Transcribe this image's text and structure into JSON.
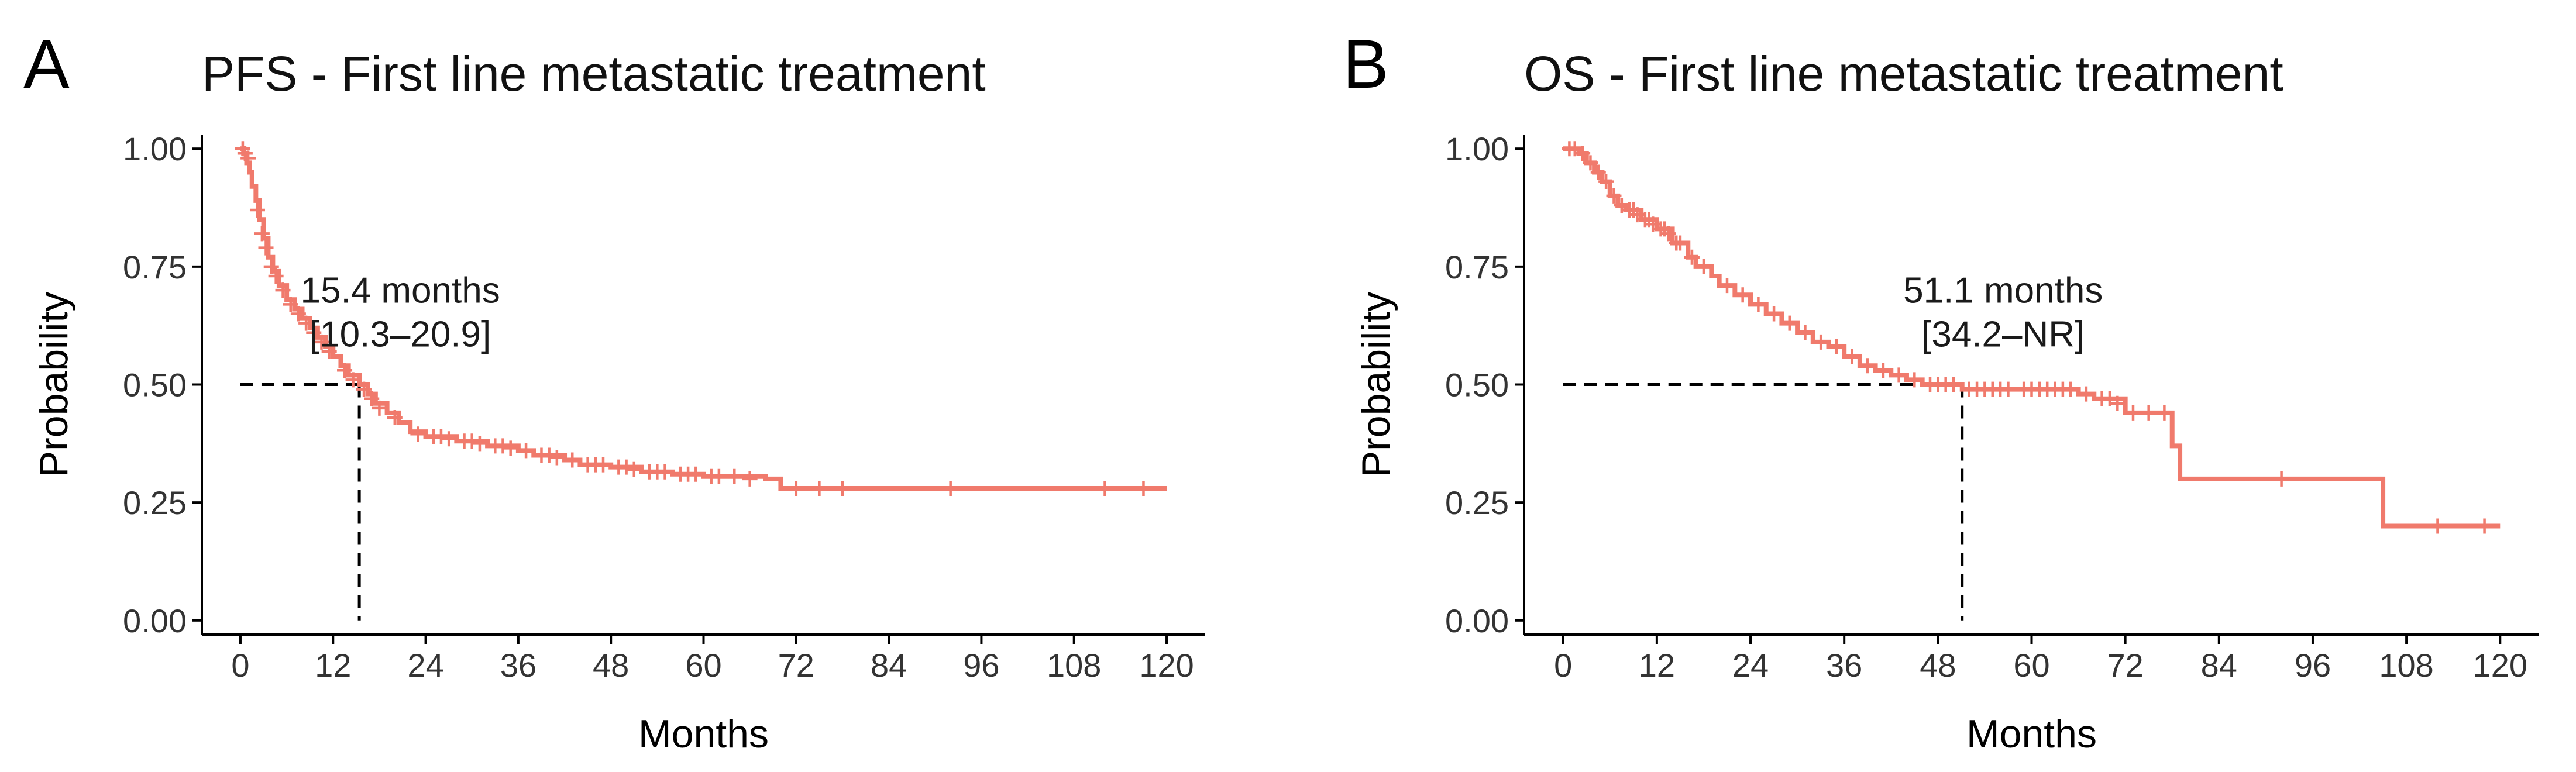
{
  "chart_data": [
    {
      "type": "line",
      "subtype": "kaplan-meier",
      "panel": "A",
      "title": "PFS - First line metastatic treatment",
      "xlabel": "Months",
      "ylabel": "Probability",
      "xlim": [
        -5,
        125
      ],
      "ylim": [
        -0.03,
        1.03
      ],
      "xticks": [
        0,
        12,
        24,
        36,
        48,
        60,
        72,
        84,
        96,
        108,
        120
      ],
      "yticks": [
        0.0,
        0.25,
        0.5,
        0.75,
        1.0
      ],
      "ytick_labels": [
        "0.00",
        "0.25",
        "0.50",
        "0.75",
        "1.00"
      ],
      "color": "#F07A6C",
      "median": {
        "x": 15.4,
        "y": 0.5
      },
      "median_label": "15.4 months",
      "ci_label": "[10.3–20.9]",
      "series": [
        {
          "name": "PFS",
          "steps": [
            [
              0,
              1.0
            ],
            [
              0.4,
              0.99
            ],
            [
              0.8,
              0.97
            ],
            [
              1.2,
              0.95
            ],
            [
              1.5,
              0.92
            ],
            [
              2,
              0.89
            ],
            [
              2.5,
              0.85
            ],
            [
              3,
              0.81
            ],
            [
              3.6,
              0.77
            ],
            [
              4.2,
              0.74
            ],
            [
              5,
              0.71
            ],
            [
              6,
              0.68
            ],
            [
              7,
              0.66
            ],
            [
              8,
              0.64
            ],
            [
              9,
              0.62
            ],
            [
              10,
              0.6
            ],
            [
              11,
              0.58
            ],
            [
              12,
              0.56
            ],
            [
              13,
              0.54
            ],
            [
              14,
              0.52
            ],
            [
              15.4,
              0.5
            ],
            [
              16.5,
              0.48
            ],
            [
              17.5,
              0.46
            ],
            [
              19,
              0.44
            ],
            [
              20.5,
              0.42
            ],
            [
              22,
              0.4
            ],
            [
              24,
              0.39
            ],
            [
              28,
              0.38
            ],
            [
              32,
              0.37
            ],
            [
              36,
              0.36
            ],
            [
              38,
              0.35
            ],
            [
              42,
              0.34
            ],
            [
              44,
              0.33
            ],
            [
              48,
              0.325
            ],
            [
              52,
              0.315
            ],
            [
              56,
              0.31
            ],
            [
              60,
              0.305
            ],
            [
              68,
              0.3
            ],
            [
              70,
              0.28
            ],
            [
              120,
              0.28
            ]
          ],
          "censored": [
            [
              0.3,
              1.0
            ],
            [
              0.6,
              0.99
            ],
            [
              1.0,
              0.98
            ],
            [
              2.2,
              0.87
            ],
            [
              2.8,
              0.82
            ],
            [
              3.3,
              0.79
            ],
            [
              4,
              0.75
            ],
            [
              4.6,
              0.73
            ],
            [
              5.5,
              0.7
            ],
            [
              6.5,
              0.67
            ],
            [
              7.5,
              0.65
            ],
            [
              8.5,
              0.63
            ],
            [
              9.5,
              0.61
            ],
            [
              10.5,
              0.59
            ],
            [
              11.5,
              0.57
            ],
            [
              13.5,
              0.53
            ],
            [
              14.6,
              0.51
            ],
            [
              16,
              0.49
            ],
            [
              17,
              0.47
            ],
            [
              18,
              0.45
            ],
            [
              20,
              0.43
            ],
            [
              23,
              0.395
            ],
            [
              25,
              0.39
            ],
            [
              26,
              0.39
            ],
            [
              27,
              0.385
            ],
            [
              29,
              0.38
            ],
            [
              30,
              0.38
            ],
            [
              31,
              0.375
            ],
            [
              33,
              0.37
            ],
            [
              34,
              0.37
            ],
            [
              35,
              0.365
            ],
            [
              37,
              0.36
            ],
            [
              39,
              0.35
            ],
            [
              40,
              0.35
            ],
            [
              41,
              0.345
            ],
            [
              43,
              0.34
            ],
            [
              45,
              0.33
            ],
            [
              46,
              0.33
            ],
            [
              47,
              0.33
            ],
            [
              49,
              0.325
            ],
            [
              50,
              0.325
            ],
            [
              51,
              0.32
            ],
            [
              53,
              0.315
            ],
            [
              54,
              0.315
            ],
            [
              55,
              0.315
            ],
            [
              57,
              0.31
            ],
            [
              58,
              0.31
            ],
            [
              59,
              0.31
            ],
            [
              61,
              0.305
            ],
            [
              62,
              0.305
            ],
            [
              64,
              0.305
            ],
            [
              66,
              0.3
            ],
            [
              72,
              0.28
            ],
            [
              75,
              0.28
            ],
            [
              78,
              0.28
            ],
            [
              92,
              0.28
            ],
            [
              112,
              0.28
            ],
            [
              117,
              0.28
            ]
          ]
        }
      ]
    },
    {
      "type": "line",
      "subtype": "kaplan-meier",
      "panel": "B",
      "title": "OS - First line metastatic treatment",
      "xlabel": "Months",
      "ylabel": "Probability",
      "xlim": [
        -5,
        125
      ],
      "ylim": [
        -0.03,
        1.03
      ],
      "xticks": [
        0,
        12,
        24,
        36,
        48,
        60,
        72,
        84,
        96,
        108,
        120
      ],
      "yticks": [
        0.0,
        0.25,
        0.5,
        0.75,
        1.0
      ],
      "ytick_labels": [
        "0.00",
        "0.25",
        "0.50",
        "0.75",
        "1.00"
      ],
      "color": "#F07A6C",
      "median": {
        "x": 51.1,
        "y": 0.5
      },
      "median_label": "51.1 months",
      "ci_label": "[34.2–NR]",
      "series": [
        {
          "name": "OS",
          "steps": [
            [
              0,
              1.0
            ],
            [
              2,
              0.99
            ],
            [
              3,
              0.97
            ],
            [
              4,
              0.95
            ],
            [
              5,
              0.93
            ],
            [
              6,
              0.9
            ],
            [
              7,
              0.88
            ],
            [
              8,
              0.87
            ],
            [
              10,
              0.85
            ],
            [
              12,
              0.83
            ],
            [
              14,
              0.8
            ],
            [
              16,
              0.77
            ],
            [
              17,
              0.75
            ],
            [
              19,
              0.73
            ],
            [
              20,
              0.71
            ],
            [
              22,
              0.69
            ],
            [
              24,
              0.67
            ],
            [
              26,
              0.65
            ],
            [
              28,
              0.63
            ],
            [
              30,
              0.61
            ],
            [
              32,
              0.59
            ],
            [
              34,
              0.58
            ],
            [
              36,
              0.56
            ],
            [
              38,
              0.54
            ],
            [
              40,
              0.53
            ],
            [
              42,
              0.52
            ],
            [
              44,
              0.51
            ],
            [
              46,
              0.5
            ],
            [
              51.1,
              0.49
            ],
            [
              66,
              0.48
            ],
            [
              68,
              0.47
            ],
            [
              72,
              0.44
            ],
            [
              76,
              0.44
            ],
            [
              78,
              0.37
            ],
            [
              79,
              0.3
            ],
            [
              105,
              0.3
            ],
            [
              105,
              0.2
            ],
            [
              120,
              0.2
            ]
          ],
          "censored": [
            [
              0.8,
              1.0
            ],
            [
              1.5,
              1.0
            ],
            [
              2.5,
              0.99
            ],
            [
              3.5,
              0.97
            ],
            [
              4.5,
              0.95
            ],
            [
              5.5,
              0.93
            ],
            [
              6.5,
              0.9
            ],
            [
              7.5,
              0.88
            ],
            [
              8.5,
              0.87
            ],
            [
              9,
              0.87
            ],
            [
              9.5,
              0.86
            ],
            [
              10.5,
              0.85
            ],
            [
              11,
              0.85
            ],
            [
              11.5,
              0.84
            ],
            [
              12.5,
              0.83
            ],
            [
              13,
              0.83
            ],
            [
              13.5,
              0.82
            ],
            [
              14.5,
              0.8
            ],
            [
              15,
              0.8
            ],
            [
              16.5,
              0.77
            ],
            [
              18,
              0.75
            ],
            [
              21,
              0.71
            ],
            [
              23,
              0.69
            ],
            [
              25,
              0.67
            ],
            [
              27,
              0.65
            ],
            [
              29,
              0.63
            ],
            [
              31,
              0.61
            ],
            [
              33,
              0.59
            ],
            [
              35,
              0.58
            ],
            [
              37,
              0.56
            ],
            [
              39,
              0.54
            ],
            [
              41,
              0.53
            ],
            [
              43,
              0.52
            ],
            [
              45,
              0.51
            ],
            [
              47,
              0.5
            ],
            [
              48,
              0.5
            ],
            [
              49,
              0.5
            ],
            [
              50,
              0.5
            ],
            [
              52,
              0.49
            ],
            [
              53,
              0.49
            ],
            [
              54,
              0.49
            ],
            [
              55,
              0.49
            ],
            [
              56,
              0.49
            ],
            [
              57,
              0.49
            ],
            [
              59,
              0.49
            ],
            [
              60,
              0.49
            ],
            [
              61,
              0.49
            ],
            [
              62,
              0.49
            ],
            [
              63,
              0.49
            ],
            [
              64,
              0.49
            ],
            [
              65,
              0.49
            ],
            [
              67,
              0.48
            ],
            [
              69,
              0.47
            ],
            [
              70,
              0.47
            ],
            [
              71,
              0.46
            ],
            [
              73,
              0.44
            ],
            [
              75,
              0.44
            ],
            [
              77,
              0.44
            ],
            [
              92,
              0.3
            ],
            [
              112,
              0.2
            ],
            [
              118,
              0.2
            ]
          ]
        }
      ]
    }
  ]
}
